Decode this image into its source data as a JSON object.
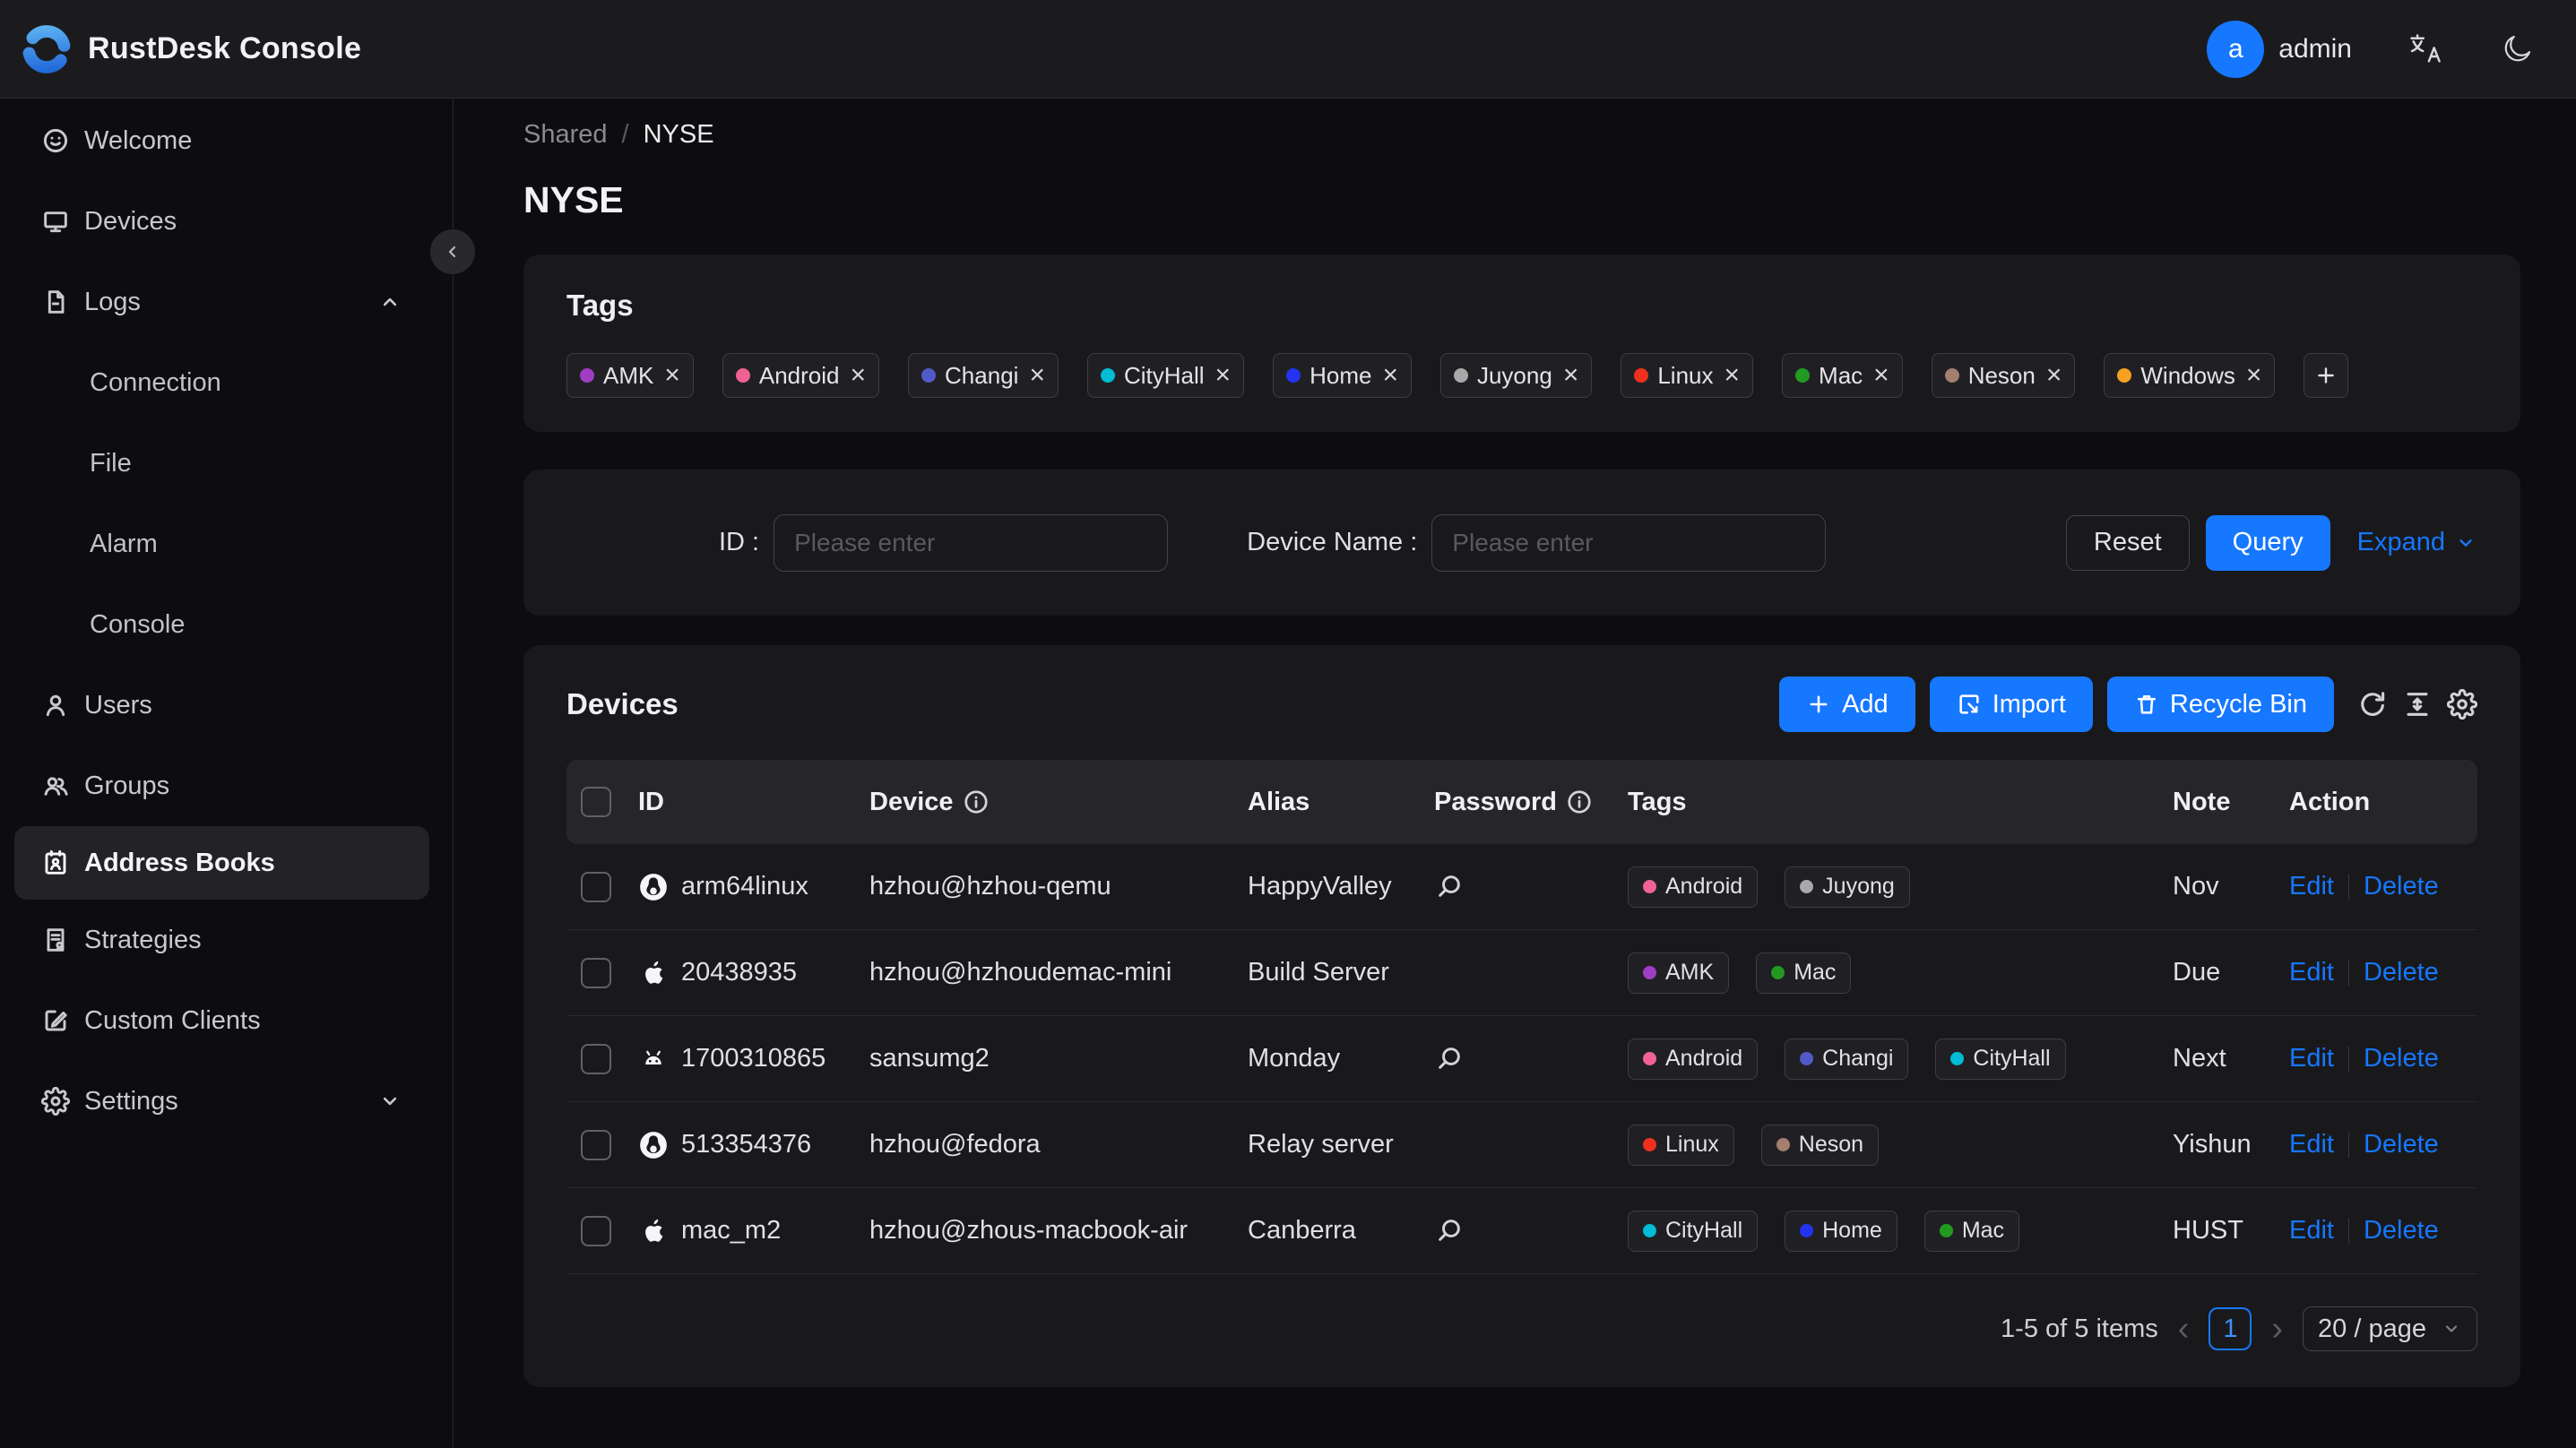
{
  "header": {
    "title": "RustDesk Console",
    "user": {
      "initial": "a",
      "name": "admin"
    }
  },
  "sidebar": {
    "items": [
      {
        "icon": "smile-icon",
        "label": "Welcome"
      },
      {
        "icon": "monitor-icon",
        "label": "Devices"
      },
      {
        "icon": "file-icon",
        "label": "Logs",
        "chevron": "up",
        "children": [
          "Connection",
          "File",
          "Alarm",
          "Console"
        ]
      },
      {
        "icon": "user-icon",
        "label": "Users"
      },
      {
        "icon": "users-icon",
        "label": "Groups"
      },
      {
        "icon": "contacts-icon",
        "label": "Address Books",
        "active": true
      },
      {
        "icon": "strategy-icon",
        "label": "Strategies"
      },
      {
        "icon": "edit-square-icon",
        "label": "Custom Clients"
      },
      {
        "icon": "gear-icon",
        "label": "Settings",
        "chevron": "down"
      }
    ]
  },
  "breadcrumb": {
    "root": "Shared",
    "separator": "/",
    "current": "NYSE"
  },
  "page": {
    "title": "NYSE"
  },
  "tags_card": {
    "title": "Tags",
    "tags": [
      {
        "label": "AMK",
        "color": "#a13dc4"
      },
      {
        "label": "Android",
        "color": "#f06292"
      },
      {
        "label": "Changi",
        "color": "#515ac9"
      },
      {
        "label": "CityHall",
        "color": "#00bcd4"
      },
      {
        "label": "Home",
        "color": "#2334f0"
      },
      {
        "label": "Juyong",
        "color": "#a8a8a8"
      },
      {
        "label": "Linux",
        "color": "#f0301f"
      },
      {
        "label": "Mac",
        "color": "#229a22"
      },
      {
        "label": "Neson",
        "color": "#a57e70"
      },
      {
        "label": "Windows",
        "color": "#f7a021"
      }
    ]
  },
  "filter": {
    "id_label": "ID :",
    "device_name_label": "Device Name :",
    "placeholder": "Please enter",
    "reset_label": "Reset",
    "query_label": "Query",
    "expand_label": "Expand"
  },
  "devices_card": {
    "title": "Devices",
    "toolbar": {
      "add_label": "Add",
      "import_label": "Import",
      "recycle_label": "Recycle Bin"
    },
    "columns": [
      {
        "key": "id",
        "label": "ID"
      },
      {
        "key": "device",
        "label": "Device",
        "info": true
      },
      {
        "key": "alias",
        "label": "Alias"
      },
      {
        "key": "password",
        "label": "Password",
        "info": true
      },
      {
        "key": "tags",
        "label": "Tags"
      },
      {
        "key": "note",
        "label": "Note"
      },
      {
        "key": "action",
        "label": "Action"
      }
    ],
    "action_labels": {
      "edit": "Edit",
      "delete": "Delete"
    },
    "rows": [
      {
        "os": "linux",
        "id": "arm64linux",
        "device": "hzhou@hzhou-qemu",
        "alias": "HappyValley",
        "has_password": true,
        "tags": [
          "Android",
          "Juyong"
        ],
        "note": "Nov"
      },
      {
        "os": "apple",
        "id": "20438935",
        "device": "hzhou@hzhoudemac-mini",
        "alias": "Build Server",
        "has_password": false,
        "tags": [
          "AMK",
          "Mac"
        ],
        "note": "Due"
      },
      {
        "os": "android",
        "id": "1700310865",
        "device": "sansumg2",
        "alias": "Monday",
        "has_password": true,
        "tags": [
          "Android",
          "Changi",
          "CityHall"
        ],
        "note": "Next"
      },
      {
        "os": "linux",
        "id": "513354376",
        "device": "hzhou@fedora",
        "alias": "Relay server",
        "has_password": false,
        "tags": [
          "Linux",
          "Neson"
        ],
        "note": "Yishun"
      },
      {
        "os": "apple",
        "id": "mac_m2",
        "device": "hzhou@zhous-macbook-air",
        "alias": "Canberra",
        "has_password": true,
        "tags": [
          "CityHall",
          "Home",
          "Mac"
        ],
        "note": "HUST"
      }
    ],
    "pagination": {
      "total_text": "1-5 of 5 items",
      "current_page": "1",
      "page_size": "20 / page"
    }
  },
  "colors": {
    "primary": "#1677ff"
  }
}
